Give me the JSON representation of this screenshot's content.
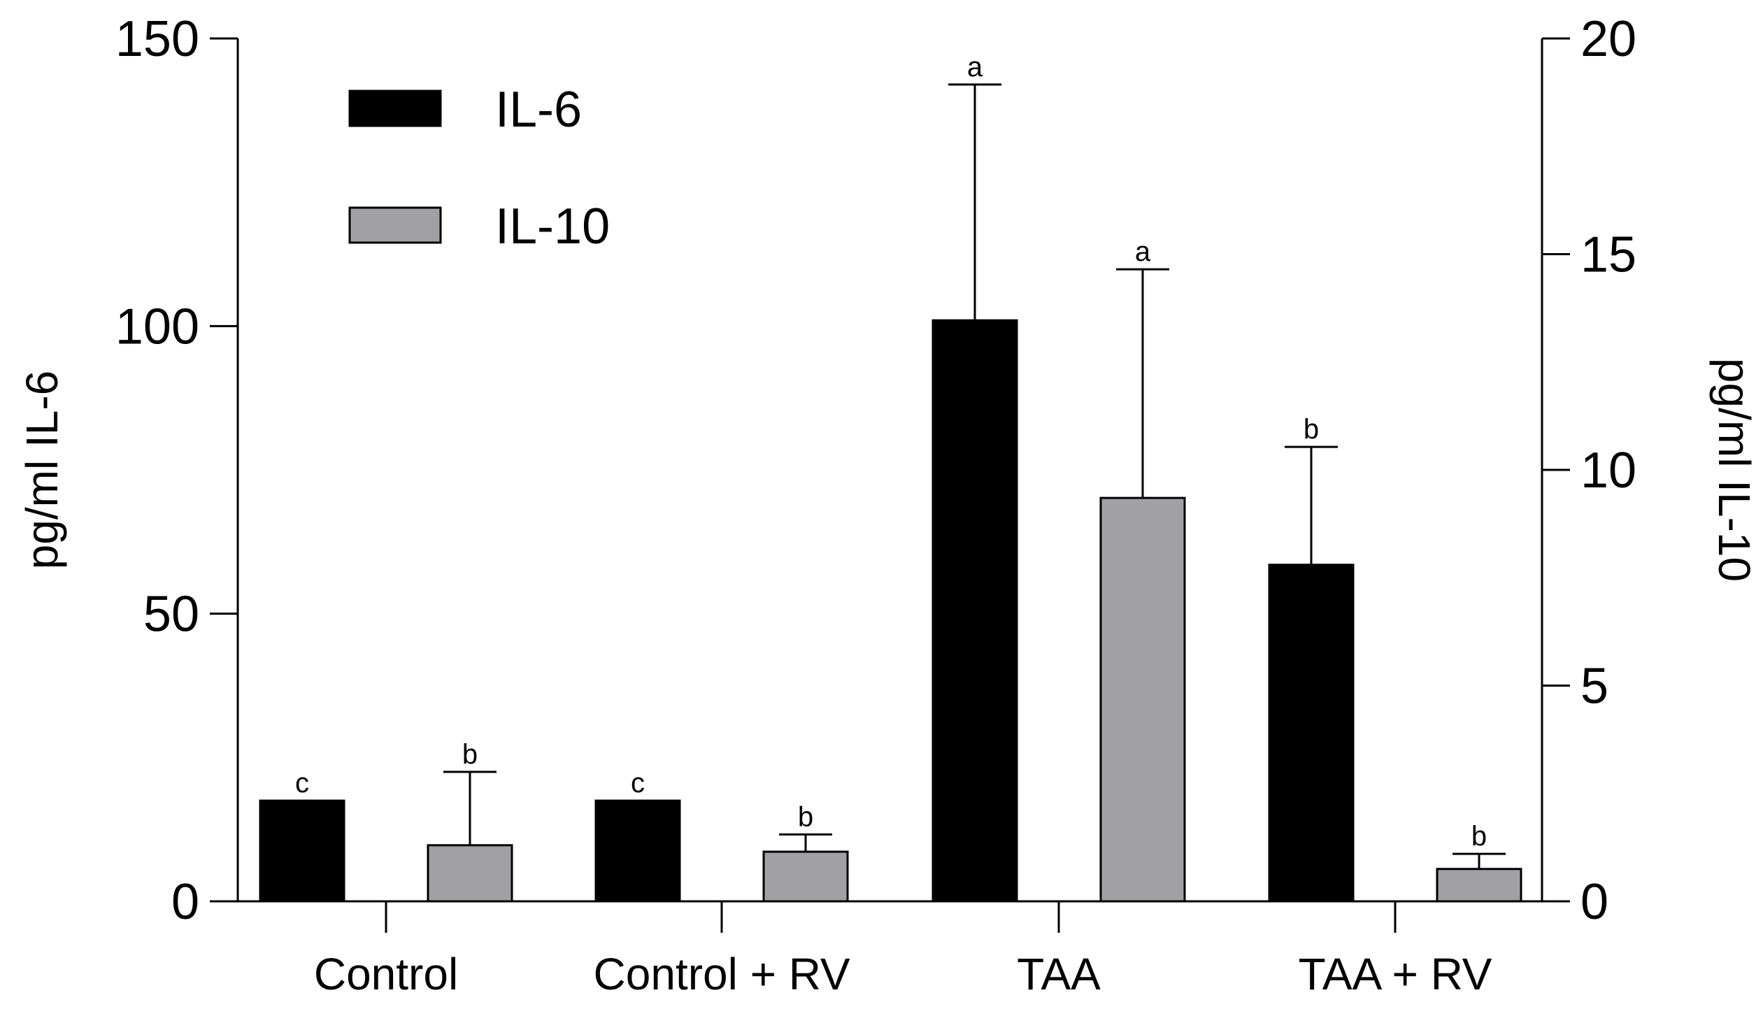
{
  "chart_data": {
    "type": "bar",
    "title": "",
    "categories": [
      "Control",
      "Control + RV",
      "TAA",
      "TAA + RV"
    ],
    "xlabel": "",
    "left_axis": {
      "label": "pg/ml IL-6",
      "ylim": [
        0,
        150
      ],
      "ticks": [
        "0",
        "50",
        "100",
        "150"
      ],
      "tick_values": [
        0,
        50,
        100,
        150
      ]
    },
    "right_axis": {
      "label": "pg/ml IL-10",
      "ylim": [
        0,
        20
      ],
      "ticks": [
        "0",
        "5",
        "10",
        "15",
        "20"
      ],
      "tick_values": [
        0,
        5,
        10,
        15,
        20
      ]
    },
    "series": [
      {
        "name": "IL-6",
        "axis": "left",
        "color": "#000000",
        "values": [
          17.5,
          17.5,
          101,
          58.5
        ],
        "error_upper": [
          17.5,
          17.5,
          142,
          79
        ],
        "letters": [
          "c",
          "c",
          "a",
          "b"
        ]
      },
      {
        "name": "IL-10",
        "axis": "right",
        "color": "#a1a1a5",
        "values": [
          1.3,
          1.15,
          9.35,
          0.75
        ],
        "error_upper": [
          3.0,
          1.55,
          14.65,
          1.1
        ],
        "letters": [
          "b",
          "b",
          "a",
          "b"
        ]
      }
    ],
    "legend": {
      "position": "top-left",
      "entries": [
        "IL-6",
        "IL-10"
      ]
    },
    "grid": false
  }
}
